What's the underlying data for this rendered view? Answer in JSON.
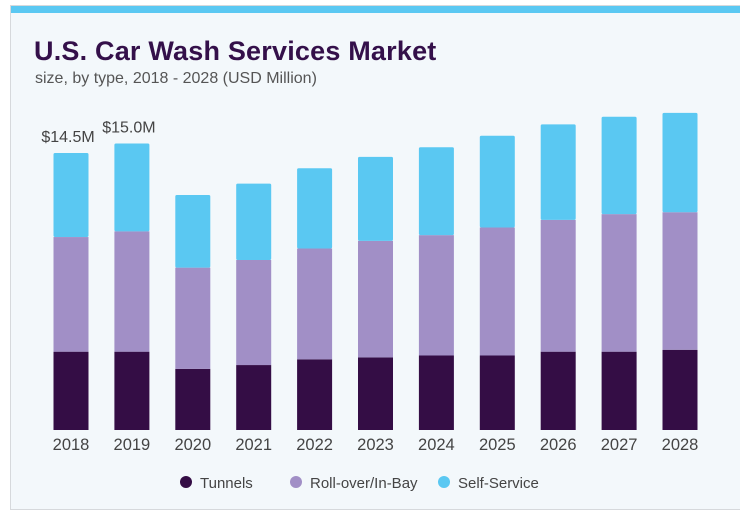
{
  "chart_data": {
    "type": "bar",
    "stacked": true,
    "title": "U.S. Car Wash Services Market",
    "subtitle": "size, by type, 2018 - 2028 (USD Million)",
    "categories": [
      "2018",
      "2019",
      "2020",
      "2021",
      "2022",
      "2023",
      "2024",
      "2025",
      "2026",
      "2027",
      "2028"
    ],
    "series": [
      {
        "name": "Tunnels",
        "color": "#340d45",
        "values": [
          4.1,
          4.1,
          3.2,
          3.4,
          3.7,
          3.8,
          3.9,
          3.9,
          4.1,
          4.1,
          4.2
        ]
      },
      {
        "name": "Roll-over/In-Bay",
        "color": "#a18fc6",
        "values": [
          6.0,
          6.3,
          5.3,
          5.5,
          5.8,
          6.1,
          6.3,
          6.7,
          6.9,
          7.2,
          7.2
        ]
      },
      {
        "name": "Self-Service",
        "color": "#5ac8f2",
        "values": [
          4.4,
          4.6,
          3.8,
          4.0,
          4.2,
          4.4,
          4.6,
          4.8,
          5.0,
          5.1,
          5.2
        ]
      }
    ],
    "annotations": [
      {
        "category": "2018",
        "text": "$14.5M"
      },
      {
        "category": "2019",
        "text": "$15.0M"
      }
    ],
    "ylim": [
      0,
      16.6
    ],
    "grid": false,
    "legend_position": "bottom",
    "accent_color": "#5ac8f2"
  }
}
